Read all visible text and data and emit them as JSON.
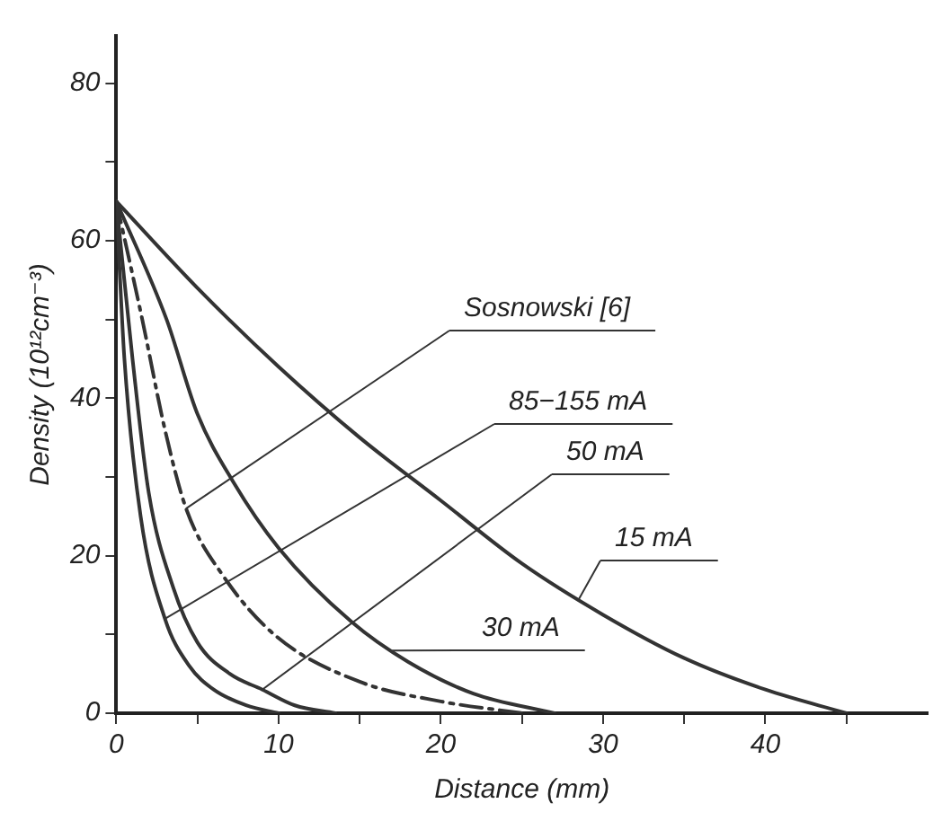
{
  "chart_data": {
    "type": "line",
    "xlabel": "Distance (mm)",
    "ylabel": "Density (10¹²cm⁻³)",
    "xlim": [
      0,
      50
    ],
    "ylim": [
      0,
      86
    ],
    "xticks": [
      0,
      {
        "value": 5,
        "label": null
      },
      10,
      {
        "value": 15,
        "label": null
      },
      20,
      {
        "value": 25,
        "label": null
      },
      30,
      {
        "value": 35,
        "label": null
      },
      40,
      {
        "value": 45,
        "label": null
      }
    ],
    "yticks": [
      0,
      {
        "value": 10,
        "label": null
      },
      20,
      {
        "value": 30,
        "label": null
      },
      40,
      {
        "value": 50,
        "label": null
      },
      60,
      {
        "value": 70,
        "label": null
      },
      80
    ],
    "grid": false,
    "legend": false,
    "marker": "none",
    "series": [
      {
        "name": "Sosnowski [6]",
        "color": "#333333",
        "line_style": "dashed",
        "x": [
          0,
          1.6,
          3,
          4.3,
          6.6,
          9.9,
          15,
          20,
          25
        ],
        "values": [
          65,
          50,
          36,
          26,
          17.4,
          9.7,
          4,
          1.5,
          0
        ]
      },
      {
        "name": "85−155 mA",
        "color": "#333333",
        "line_style": "solid",
        "x": [
          0,
          0.5,
          1.5,
          3,
          4.5,
          6,
          8,
          10
        ],
        "values": [
          65,
          45,
          25,
          12,
          6,
          3,
          1,
          0
        ]
      },
      {
        "name": "50 mA",
        "color": "#333333",
        "line_style": "solid",
        "x": [
          0,
          1,
          2,
          3.5,
          5,
          7,
          9,
          11,
          13.5
        ],
        "values": [
          65,
          45,
          28,
          16,
          9,
          5,
          3,
          1,
          0
        ]
      },
      {
        "name": "15 mA",
        "color": "#333333",
        "line_style": "solid",
        "x": [
          0,
          5,
          10,
          15,
          20,
          25,
          30,
          35,
          40,
          45
        ],
        "values": [
          65,
          54,
          44,
          35,
          27,
          19,
          12.5,
          7,
          3,
          0
        ]
      },
      {
        "name": "30 mA",
        "color": "#333333",
        "line_style": "solid",
        "x": [
          0,
          3.1,
          5,
          7.2,
          10,
          14.5,
          18,
          22,
          27
        ],
        "values": [
          65,
          50,
          38,
          29.4,
          21,
          11.6,
          6.5,
          2.5,
          0
        ]
      }
    ]
  }
}
